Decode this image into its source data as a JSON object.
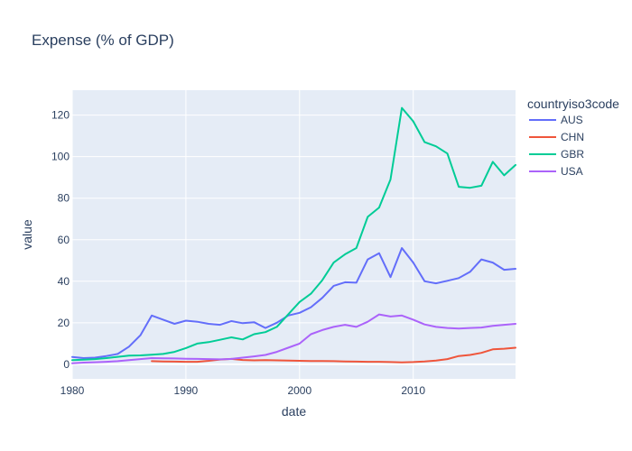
{
  "chart_data": {
    "type": "line",
    "title": "Expense (% of GDP)",
    "xlabel": "date",
    "ylabel": "value",
    "xlim": [
      1980,
      2019
    ],
    "ylim": [
      -7,
      132
    ],
    "xticks": [
      1980,
      1990,
      2000,
      2010
    ],
    "xtick_labels": [
      "1980",
      "1990",
      "2000",
      "2010"
    ],
    "yticks": [
      0,
      20,
      40,
      60,
      80,
      100,
      120
    ],
    "yzero": 0,
    "grid": true,
    "legend_title": "countryiso3code",
    "legend_position": "right",
    "series": [
      {
        "name": "AUS",
        "color": "#636efa",
        "x": [
          1980,
          1981,
          1982,
          1983,
          1984,
          1985,
          1986,
          1987,
          1988,
          1989,
          1990,
          1991,
          1992,
          1993,
          1994,
          1995,
          1996,
          1997,
          1998,
          1999,
          2000,
          2001,
          2002,
          2003,
          2004,
          2005,
          2006,
          2007,
          2008,
          2009,
          2010,
          2011,
          2012,
          2013,
          2014,
          2015,
          2016,
          2017,
          2018,
          2019
        ],
        "y": [
          3.5,
          3.0,
          3.2,
          4.0,
          5.0,
          8.5,
          14.0,
          23.5,
          21.5,
          19.5,
          21.0,
          20.5,
          19.5,
          19.0,
          20.8,
          19.8,
          20.3,
          17.5,
          20.0,
          23.5,
          24.8,
          27.5,
          32.0,
          37.8,
          39.5,
          39.3,
          50.5,
          53.5,
          42.0,
          56.0,
          49.0,
          40.0,
          39.0,
          40.2,
          41.5,
          44.5,
          50.5,
          49.0,
          45.5,
          46.0
        ]
      },
      {
        "name": "CHN",
        "color": "#ef553b",
        "x": [
          1987,
          1988,
          1989,
          1990,
          1991,
          1992,
          1993,
          1994,
          1995,
          1996,
          1997,
          1998,
          1999,
          2000,
          2001,
          2002,
          2003,
          2004,
          2005,
          2006,
          2007,
          2008,
          2009,
          2010,
          2011,
          2012,
          2013,
          2014,
          2015,
          2016,
          2017,
          2018,
          2019
        ],
        "y": [
          1.5,
          1.4,
          1.3,
          1.2,
          1.2,
          1.7,
          2.3,
          2.6,
          2.1,
          1.9,
          2.0,
          1.9,
          1.8,
          1.7,
          1.6,
          1.6,
          1.5,
          1.4,
          1.3,
          1.2,
          1.2,
          1.1,
          0.9,
          1.1,
          1.4,
          1.8,
          2.5,
          4.0,
          4.5,
          5.5,
          7.2,
          7.5,
          8.0
        ]
      },
      {
        "name": "GBR",
        "color": "#00cc96",
        "x": [
          1980,
          1981,
          1982,
          1983,
          1984,
          1985,
          1986,
          1987,
          1988,
          1989,
          1990,
          1991,
          1992,
          1993,
          1994,
          1995,
          1996,
          1997,
          1998,
          1999,
          2000,
          2001,
          2002,
          2003,
          2004,
          2005,
          2006,
          2007,
          2008,
          2009,
          2010,
          2011,
          2012,
          2013,
          2014,
          2015,
          2016,
          2017,
          2018,
          2019
        ],
        "y": [
          2.0,
          2.2,
          2.5,
          3.0,
          3.6,
          4.2,
          4.3,
          4.6,
          5.0,
          6.0,
          7.8,
          10.0,
          10.7,
          11.8,
          13.0,
          12.0,
          14.5,
          15.5,
          18.0,
          24.0,
          30.0,
          34.0,
          40.5,
          49.0,
          53.0,
          56.0,
          71.0,
          75.5,
          89.0,
          123.5,
          117.0,
          107.0,
          105.0,
          101.5,
          85.5,
          85.0,
          86.0,
          97.5,
          91.0,
          96.0
        ]
      },
      {
        "name": "USA",
        "color": "#ab63fa",
        "x": [
          1980,
          1981,
          1982,
          1983,
          1984,
          1985,
          1986,
          1987,
          1988,
          1989,
          1990,
          1991,
          1992,
          1993,
          1994,
          1995,
          1996,
          1997,
          1998,
          1999,
          2000,
          2001,
          2002,
          2003,
          2004,
          2005,
          2006,
          2007,
          2008,
          2009,
          2010,
          2011,
          2012,
          2013,
          2014,
          2015,
          2016,
          2017,
          2018,
          2019
        ],
        "y": [
          0.5,
          0.8,
          1.0,
          1.2,
          1.5,
          2.0,
          2.5,
          3.0,
          2.9,
          2.8,
          2.7,
          2.6,
          2.5,
          2.4,
          2.6,
          3.2,
          3.8,
          4.5,
          6.0,
          8.0,
          10.0,
          14.5,
          16.5,
          18.0,
          19.0,
          18.0,
          20.5,
          24.0,
          23.0,
          23.5,
          21.5,
          19.2,
          18.0,
          17.5,
          17.2,
          17.5,
          17.7,
          18.5,
          19.0,
          19.5
        ]
      }
    ]
  }
}
